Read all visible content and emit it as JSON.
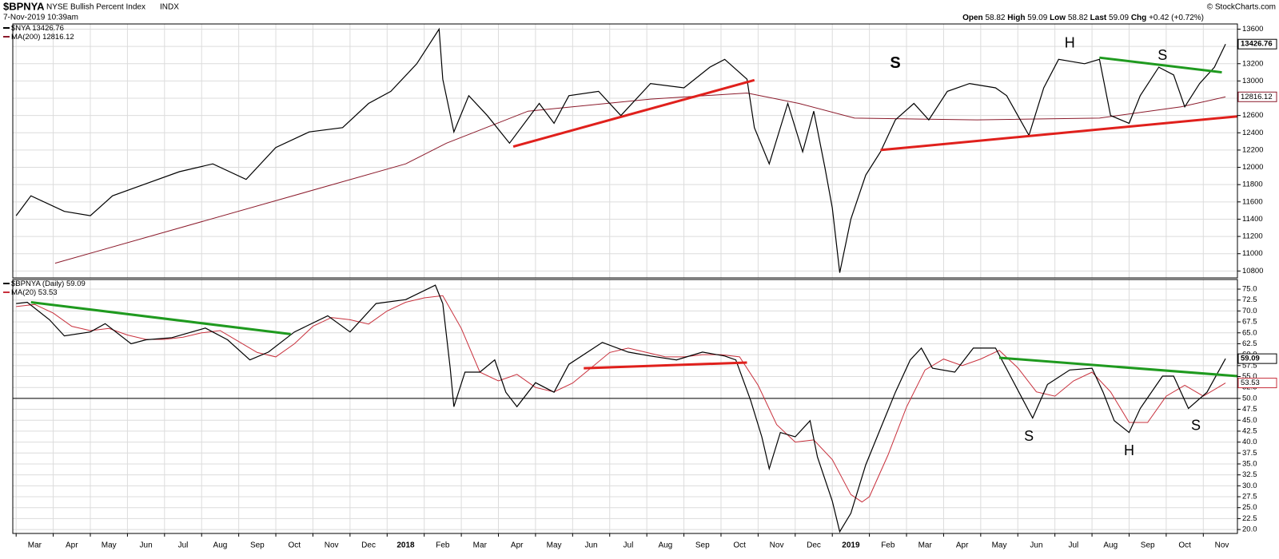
{
  "header": {
    "symbol": "$BPNYA",
    "name": "NYSE Bullish Percent Index",
    "exchange": "INDX",
    "date": "7-Nov-2019 10:39am",
    "quote": [
      {
        "label": "Open",
        "value": 58.82
      },
      {
        "label": "High",
        "value": 59.09
      },
      {
        "label": "Low",
        "value": 58.82
      },
      {
        "label": "Last",
        "value": 59.09
      },
      {
        "label": "Chg",
        "text": "+0.42 (+0.72%)"
      }
    ],
    "credit": "© StockCharts.com"
  },
  "chart_data": [
    {
      "type": "line",
      "xlim": [
        -0.09,
        32.92
      ],
      "ylim": [
        10720,
        13660
      ],
      "yticks": [
        10800,
        11000,
        11200,
        11400,
        11600,
        11800,
        12000,
        12200,
        12400,
        12600,
        12800,
        13000,
        13200,
        13400,
        13600
      ],
      "grid": true,
      "series": [
        {
          "name": "$NYA",
          "last": 13426.76,
          "color": "#000000",
          "x": [
            0,
            0.4,
            1.3,
            2.0,
            2.6,
            3.5,
            4.4,
            5.3,
            6.2,
            7.0,
            7.9,
            8.8,
            9.5,
            10.1,
            10.8,
            11.4,
            11.5,
            11.8,
            12.2,
            12.7,
            13.3,
            14.1,
            14.5,
            14.9,
            15.7,
            16.3,
            17.1,
            18.0,
            18.7,
            19.1,
            19.7,
            19.9,
            20.3,
            20.8,
            21.2,
            21.5,
            21.8,
            22.0,
            22.2,
            22.5,
            22.9,
            23.3,
            23.7,
            24.2,
            24.6,
            25.1,
            25.7,
            26.4,
            26.7,
            27.3,
            27.7,
            28.1,
            28.8,
            29.2,
            29.5,
            30.0,
            30.3,
            30.8,
            31.2,
            31.5,
            31.9,
            32.3,
            32.6
          ],
          "values": [
            11440,
            11670,
            11490,
            11440,
            11670,
            11810,
            11950,
            12040,
            11860,
            12230,
            12410,
            12460,
            12740,
            12880,
            13200,
            13600,
            13020,
            12410,
            12830,
            12600,
            12280,
            12740,
            12510,
            12830,
            12880,
            12600,
            12970,
            12920,
            13160,
            13250,
            13020,
            12460,
            12040,
            12740,
            12180,
            12650,
            12000,
            11530,
            10780,
            11400,
            11910,
            12180,
            12550,
            12740,
            12550,
            12880,
            12970,
            12920,
            12830,
            12370,
            12920,
            13250,
            13200,
            13250,
            12600,
            12510,
            12830,
            13160,
            13070,
            12700,
            12970,
            13160,
            13426.76
          ]
        },
        {
          "name": "MA(200)",
          "last": 12816.12,
          "color": "#8b1a2b",
          "x": [
            1.05,
            10.5,
            11.6,
            13.8,
            17.1,
            19.7,
            21.1,
            22.6,
            25.9,
            29.2,
            31.4,
            32.6
          ],
          "values": [
            10890,
            12040,
            12280,
            12650,
            12790,
            12860,
            12740,
            12570,
            12550,
            12570,
            12700,
            12816.12
          ]
        }
      ],
      "trendlines": [
        {
          "color": "#e0201c",
          "x": [
            13.4,
            19.9
          ],
          "y": [
            12240,
            13010
          ]
        },
        {
          "color": "#e0201c",
          "x": [
            23.3,
            32.92
          ],
          "y": [
            12200,
            12590
          ]
        },
        {
          "color": "#1f9a1f",
          "x": [
            29.2,
            32.5
          ],
          "y": [
            13270,
            13100
          ]
        }
      ],
      "annotations": [
        {
          "text": "S",
          "x": 23.7,
          "y": 13200,
          "color": "#e0201c",
          "bold": true
        },
        {
          "text": "H",
          "x": 28.4,
          "y": 13430,
          "color": "#e0201c"
        },
        {
          "text": "S",
          "x": 30.9,
          "y": 13290,
          "color": "#e0201c"
        }
      ]
    },
    {
      "type": "line",
      "xlim": [
        -0.09,
        32.92
      ],
      "ylim": [
        19.1,
        77.2
      ],
      "yticks": [
        {
          "value": 20,
          "label": "20.0"
        },
        {
          "value": 22.5,
          "label": "22.5"
        },
        {
          "value": 25,
          "label": "25.0"
        },
        {
          "value": 27.5,
          "label": "27.5"
        },
        {
          "value": 30,
          "label": "30.0"
        },
        {
          "value": 32.5,
          "label": "32.5"
        },
        {
          "value": 35,
          "label": "35.0"
        },
        {
          "value": 37.5,
          "label": "37.5"
        },
        {
          "value": 40,
          "label": "40.0"
        },
        {
          "value": 42.5,
          "label": "42.5"
        },
        {
          "value": 45,
          "label": "45.0"
        },
        {
          "value": 47.5,
          "label": "47.5"
        },
        {
          "value": 50,
          "label": "50.0"
        },
        {
          "value": 52.5,
          "label": "52.5"
        },
        {
          "value": 55,
          "label": "55.0"
        },
        {
          "value": 57.5,
          "label": "57.5"
        },
        {
          "value": 60,
          "label": "60.0"
        },
        {
          "value": 62.5,
          "label": "62.5"
        },
        {
          "value": 65,
          "label": "65.0"
        },
        {
          "value": 67.5,
          "label": "67.5"
        },
        {
          "value": 70,
          "label": "70.0"
        },
        {
          "value": 72.5,
          "label": "72.5"
        },
        {
          "value": 75,
          "label": "75.0"
        }
      ],
      "xticks": [
        {
          "value": 0,
          "label": "Mar"
        },
        {
          "value": 1,
          "label": "Apr"
        },
        {
          "value": 2,
          "label": "May"
        },
        {
          "value": 3,
          "label": "Jun"
        },
        {
          "value": 4,
          "label": "Jul"
        },
        {
          "value": 5,
          "label": "Aug"
        },
        {
          "value": 6,
          "label": "Sep"
        },
        {
          "value": 7,
          "label": "Oct"
        },
        {
          "value": 8,
          "label": "Nov"
        },
        {
          "value": 9,
          "label": "Dec"
        },
        {
          "value": 10,
          "label": "2018"
        },
        {
          "value": 11,
          "label": "Feb"
        },
        {
          "value": 12,
          "label": "Mar"
        },
        {
          "value": 13,
          "label": "Apr"
        },
        {
          "value": 14,
          "label": "May"
        },
        {
          "value": 15,
          "label": "Jun"
        },
        {
          "value": 16,
          "label": "Jul"
        },
        {
          "value": 17,
          "label": "Aug"
        },
        {
          "value": 18,
          "label": "Sep"
        },
        {
          "value": 19,
          "label": "Oct"
        },
        {
          "value": 20,
          "label": "Nov"
        },
        {
          "value": 21,
          "label": "Dec"
        },
        {
          "value": 22,
          "label": "2019"
        },
        {
          "value": 23,
          "label": "Feb"
        },
        {
          "value": 24,
          "label": "Mar"
        },
        {
          "value": 25,
          "label": "Apr"
        },
        {
          "value": 26,
          "label": "May"
        },
        {
          "value": 27,
          "label": "Jun"
        },
        {
          "value": 28,
          "label": "Jul"
        },
        {
          "value": 29,
          "label": "Aug"
        },
        {
          "value": 30,
          "label": "Sep"
        },
        {
          "value": 31,
          "label": "Oct"
        },
        {
          "value": 32,
          "label": "Nov"
        }
      ],
      "grid": true,
      "hline": 50,
      "series": [
        {
          "name": "$BPNYA (Daily)",
          "last": 59.09,
          "color": "#000000",
          "x": [
            0,
            0.3,
            0.9,
            1.3,
            2.0,
            2.4,
            3.1,
            3.5,
            4.2,
            5.1,
            5.7,
            6.3,
            6.8,
            7.5,
            8.4,
            9.0,
            9.7,
            10.5,
            11.3,
            11.5,
            11.7,
            11.8,
            12.1,
            12.5,
            12.9,
            13.2,
            13.5,
            14.0,
            14.5,
            14.9,
            15.8,
            16.5,
            17.1,
            17.8,
            18.5,
            19.1,
            19.4,
            19.8,
            20.1,
            20.3,
            20.6,
            21.0,
            21.4,
            21.6,
            22.0,
            22.2,
            22.5,
            22.9,
            23.3,
            23.7,
            24.1,
            24.4,
            24.7,
            25.3,
            25.8,
            26.4,
            26.8,
            27.4,
            27.8,
            28.4,
            29.0,
            29.3,
            29.6,
            30.0,
            30.3,
            30.9,
            31.2,
            31.6,
            32.1,
            32.6
          ],
          "values": [
            71.7,
            72.0,
            68.0,
            64.3,
            65.2,
            67.1,
            62.5,
            63.4,
            63.9,
            66.1,
            63.4,
            58.8,
            60.6,
            65.2,
            68.9,
            65.2,
            71.7,
            72.6,
            75.9,
            71.7,
            56.9,
            48.1,
            56.0,
            56.0,
            58.8,
            51.4,
            48.1,
            53.6,
            51.4,
            57.8,
            62.8,
            60.6,
            59.7,
            58.8,
            60.6,
            59.7,
            58.8,
            49.5,
            41.2,
            33.9,
            42.2,
            41.2,
            44.9,
            36.6,
            26.5,
            19.5,
            23.7,
            34.8,
            43.1,
            51.4,
            58.8,
            61.5,
            56.9,
            56.0,
            61.5,
            61.5,
            55.1,
            45.5,
            53.2,
            56.5,
            56.9,
            51.4,
            44.9,
            42.2,
            47.7,
            55.1,
            55.1,
            47.7,
            51.4,
            59.09
          ]
        },
        {
          "name": "MA(20)",
          "last": 53.53,
          "color": "#c8303c",
          "x": [
            0,
            0.5,
            1.0,
            1.5,
            2.0,
            2.5,
            3.0,
            3.5,
            4.0,
            4.5,
            5.0,
            5.5,
            6.0,
            6.5,
            7.0,
            7.5,
            8.0,
            8.5,
            9.0,
            9.5,
            10.0,
            10.5,
            11.0,
            11.5,
            12.0,
            12.5,
            13.0,
            13.5,
            14.0,
            14.5,
            15.0,
            15.5,
            16.0,
            16.5,
            17.0,
            17.5,
            18.0,
            18.5,
            19.0,
            19.5,
            20.0,
            20.5,
            21.0,
            21.5,
            22.0,
            22.5,
            22.8,
            23.0,
            23.5,
            24.0,
            24.5,
            25.0,
            25.5,
            26.0,
            26.5,
            27.0,
            27.5,
            28.0,
            28.5,
            29.0,
            29.5,
            30.0,
            30.5,
            31.0,
            31.5,
            32.0,
            32.6
          ],
          "values": [
            71.0,
            71.5,
            69.5,
            66.5,
            65.5,
            66.0,
            64.5,
            63.5,
            63.5,
            64.0,
            65.0,
            65.5,
            63.0,
            60.5,
            59.5,
            62.5,
            66.5,
            68.5,
            68.0,
            67.0,
            70.0,
            72.0,
            73.0,
            73.5,
            66.0,
            56.0,
            54.0,
            55.5,
            52.5,
            51.5,
            53.5,
            57.0,
            60.5,
            61.5,
            60.5,
            59.5,
            59.5,
            60.0,
            60.0,
            59.5,
            53.0,
            44.0,
            40.0,
            40.5,
            36.0,
            28.0,
            26.3,
            27.5,
            37.0,
            48.0,
            56.5,
            59.0,
            57.5,
            59.0,
            61.0,
            57.0,
            51.5,
            50.5,
            54.0,
            56.0,
            51.5,
            44.5,
            44.5,
            50.5,
            53.0,
            50.5,
            53.53
          ]
        }
      ],
      "trendlines": [
        {
          "color": "#1f9a1f",
          "x": [
            0.4,
            7.4
          ],
          "y": [
            72.0,
            64.7
          ]
        },
        {
          "color": "#e0201c",
          "x": [
            15.3,
            19.7
          ],
          "y": [
            56.9,
            58.2
          ]
        },
        {
          "color": "#1f9a1f",
          "x": [
            26.5,
            32.92
          ],
          "y": [
            59.3,
            55.1
          ]
        }
      ],
      "annotations": [
        {
          "text": "S",
          "x": 27.3,
          "y": 41.2,
          "color": "#1f9a1f"
        },
        {
          "text": "H",
          "x": 30.0,
          "y": 37.9,
          "color": "#1f9a1f"
        },
        {
          "text": "S",
          "x": 31.8,
          "y": 43.6,
          "color": "#1f9a1f"
        }
      ]
    }
  ]
}
